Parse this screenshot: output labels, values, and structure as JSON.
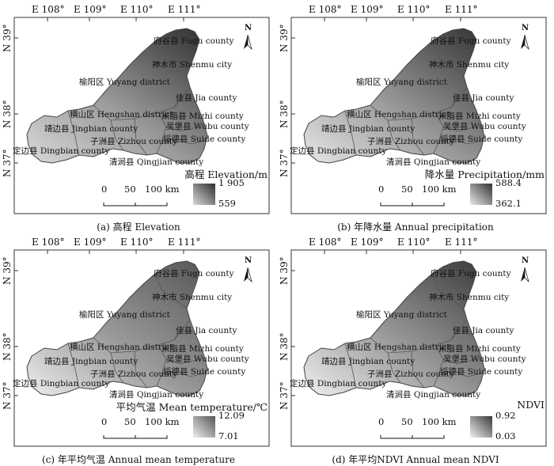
{
  "figure": {
    "panels": [
      {
        "id": "a",
        "caption": "(a) 高程 Elevation",
        "legend_title": "高程 Elevation/m",
        "legend_max": "1 905",
        "legend_min": "559",
        "color_high": "#2e2e2e",
        "color_low": "#d9d9d9"
      },
      {
        "id": "b",
        "caption": "(b) 年降水量 Annual precipitation",
        "legend_title": "降水量 Precipitation/mm",
        "legend_max": "588.4",
        "legend_min": "362.1",
        "color_high": "#333333",
        "color_low": "#e8e8e8"
      },
      {
        "id": "c",
        "caption": "(c) 年平均气温 Annual mean temperature",
        "legend_title": "平均气温 Mean temperature/℃",
        "legend_max": "12.09",
        "legend_min": "7.01",
        "color_high": "#555555",
        "color_low": "#eeeeee"
      },
      {
        "id": "d",
        "caption": "(d) 年平均NDVI Annual mean NDVI",
        "legend_title": "NDVI",
        "legend_max": "0.92",
        "legend_min": "0.03",
        "color_high": "#3a3a3a",
        "color_low": "#f0f0f0"
      }
    ],
    "longitudes": [
      "E 108°",
      "E 109°",
      "E 110°",
      "E 111°"
    ],
    "latitudes": [
      "N 39°",
      "N 38°",
      "N 37°"
    ],
    "north_label": "N",
    "scale_bar": [
      "0",
      "50",
      "100 km"
    ],
    "places": {
      "fugu": "府谷县 Fugu county",
      "shenmu": "神木市 Shenmu city",
      "yuyang": "榆阳区 Yuyang district",
      "jia": "佳县 Jia county",
      "hengshan": "横山区 Hengshan district",
      "mizhi": "米脂县 Mizhi county",
      "jingbian": "靖边县 Jingbian county",
      "wubu": "吴堡县 Wubu county",
      "suide": "绥德县 Suide county",
      "zizhou": "子洲县 Zizhou county",
      "dingbian": "定边县 Dingbian county",
      "qingjian": "清涧县 Qingjian county"
    }
  }
}
